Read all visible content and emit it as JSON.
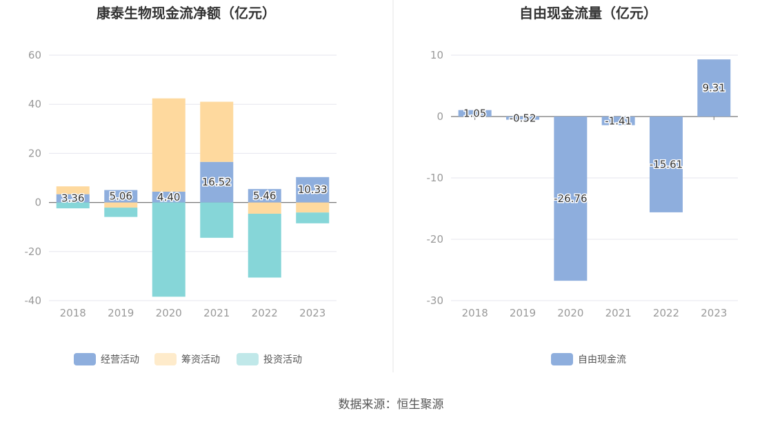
{
  "source": "数据来源：恒生聚源",
  "chart_data": [
    {
      "type": "bar",
      "title": "康泰生物现金流净额（亿元）",
      "categories": [
        "2018",
        "2019",
        "2020",
        "2021",
        "2022",
        "2023"
      ],
      "ylim": [
        -40,
        60
      ],
      "yticks": [
        60,
        40,
        20,
        0,
        -20,
        -40
      ],
      "stacked": true,
      "grid": true,
      "legend_position": "bottom",
      "series": [
        {
          "name": "经营活动",
          "color": "#8eaedd",
          "values": [
            3.36,
            5.06,
            4.4,
            16.52,
            5.46,
            10.33
          ],
          "labels": [
            "3.36",
            "5.06",
            "4.40",
            "16.52",
            "5.46",
            "10.33"
          ]
        },
        {
          "name": "筹资活动",
          "color": "#fed99e",
          "values": [
            3.2,
            -2.1,
            38.0,
            24.5,
            -4.6,
            -4.1
          ]
        },
        {
          "name": "投资活动",
          "color": "#86d6d8",
          "values": [
            -2.4,
            -3.8,
            -38.4,
            -14.4,
            -26.0,
            -4.4
          ]
        }
      ],
      "legend_colors": [
        "#8eaedd",
        "#feebcb",
        "#c0e8e9"
      ]
    },
    {
      "type": "bar",
      "title": "自由现金流量（亿元）",
      "categories": [
        "2018",
        "2019",
        "2020",
        "2021",
        "2022",
        "2023"
      ],
      "ylim": [
        -30,
        10
      ],
      "yticks": [
        10,
        0,
        -10,
        -20,
        -30
      ],
      "grid": true,
      "legend_position": "bottom",
      "series": [
        {
          "name": "自由现金流",
          "color": "#8eaedd",
          "values": [
            1.05,
            -0.52,
            -26.76,
            -1.41,
            -15.61,
            9.31
          ],
          "labels": [
            "1.05",
            "-0.52",
            "-26.76",
            "-1.41",
            "-15.61",
            "9.31"
          ]
        }
      ]
    }
  ]
}
